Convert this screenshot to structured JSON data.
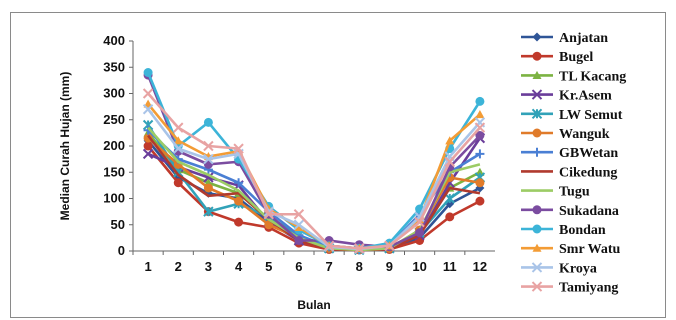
{
  "chart_data": {
    "type": "line",
    "xlabel": "Bulan",
    "ylabel": "Median Curah Hujan (mm)",
    "x": [
      1,
      2,
      3,
      4,
      5,
      6,
      7,
      8,
      9,
      10,
      11,
      12
    ],
    "ylim": [
      0,
      400
    ],
    "yticks": [
      0,
      50,
      100,
      150,
      200,
      250,
      300,
      350,
      400
    ],
    "grid": false,
    "legend_position": "right",
    "series": [
      {
        "name": "Anjatan",
        "color": "#2f5597",
        "marker": "diamond",
        "values": [
          210,
          140,
          110,
          100,
          55,
          20,
          5,
          2,
          5,
          25,
          90,
          120
        ]
      },
      {
        "name": "Bugel",
        "color": "#c0392b",
        "marker": "circle",
        "values": [
          200,
          130,
          75,
          55,
          45,
          15,
          3,
          2,
          3,
          20,
          65,
          95
        ]
      },
      {
        "name": "TL Kacang",
        "color": "#7cb342",
        "marker": "triangle",
        "values": [
          225,
          155,
          130,
          110,
          60,
          25,
          5,
          3,
          5,
          35,
          120,
          150
        ]
      },
      {
        "name": "Kr.Asem",
        "color": "#6a3d9a",
        "marker": "x",
        "values": [
          185,
          160,
          140,
          125,
          55,
          20,
          10,
          5,
          8,
          30,
          130,
          215
        ]
      },
      {
        "name": "LW Semut",
        "color": "#31a2b8",
        "marker": "star",
        "values": [
          240,
          150,
          75,
          90,
          65,
          30,
          5,
          2,
          5,
          35,
          100,
          140
        ]
      },
      {
        "name": "Wanguk",
        "color": "#e07b2a",
        "marker": "circle",
        "values": [
          215,
          165,
          120,
          95,
          50,
          25,
          5,
          3,
          5,
          40,
          140,
          130
        ]
      },
      {
        "name": "GBWetan",
        "color": "#4a7fd4",
        "marker": "plus",
        "values": [
          230,
          175,
          155,
          130,
          75,
          30,
          8,
          3,
          10,
          70,
          150,
          185
        ]
      },
      {
        "name": "Cikedung",
        "color": "#b03a2e",
        "marker": "line",
        "values": [
          220,
          145,
          105,
          110,
          60,
          20,
          4,
          2,
          4,
          30,
          120,
          110
        ]
      },
      {
        "name": "Tugu",
        "color": "#9ccc65",
        "marker": "line",
        "values": [
          235,
          170,
          145,
          115,
          60,
          25,
          5,
          2,
          5,
          40,
          150,
          165
        ]
      },
      {
        "name": "Sukadana",
        "color": "#7b4ca0",
        "marker": "circle",
        "values": [
          335,
          190,
          165,
          170,
          70,
          20,
          20,
          12,
          8,
          35,
          160,
          220
        ]
      },
      {
        "name": "Bondan",
        "color": "#3cb4d8",
        "marker": "circle",
        "values": [
          340,
          200,
          245,
          175,
          85,
          40,
          10,
          5,
          15,
          80,
          195,
          285
        ]
      },
      {
        "name": "Smr Watu",
        "color": "#f39c35",
        "marker": "triangle",
        "values": [
          280,
          210,
          180,
          190,
          80,
          45,
          10,
          5,
          10,
          60,
          210,
          260
        ]
      },
      {
        "name": "Kroya",
        "color": "#a9c4e8",
        "marker": "x",
        "values": [
          270,
          195,
          175,
          185,
          75,
          50,
          8,
          4,
          10,
          65,
          180,
          245
        ]
      },
      {
        "name": "Tamiyang",
        "color": "#e8a3a3",
        "marker": "x",
        "values": [
          300,
          235,
          200,
          195,
          70,
          70,
          10,
          5,
          10,
          55,
          170,
          235
        ]
      }
    ]
  }
}
